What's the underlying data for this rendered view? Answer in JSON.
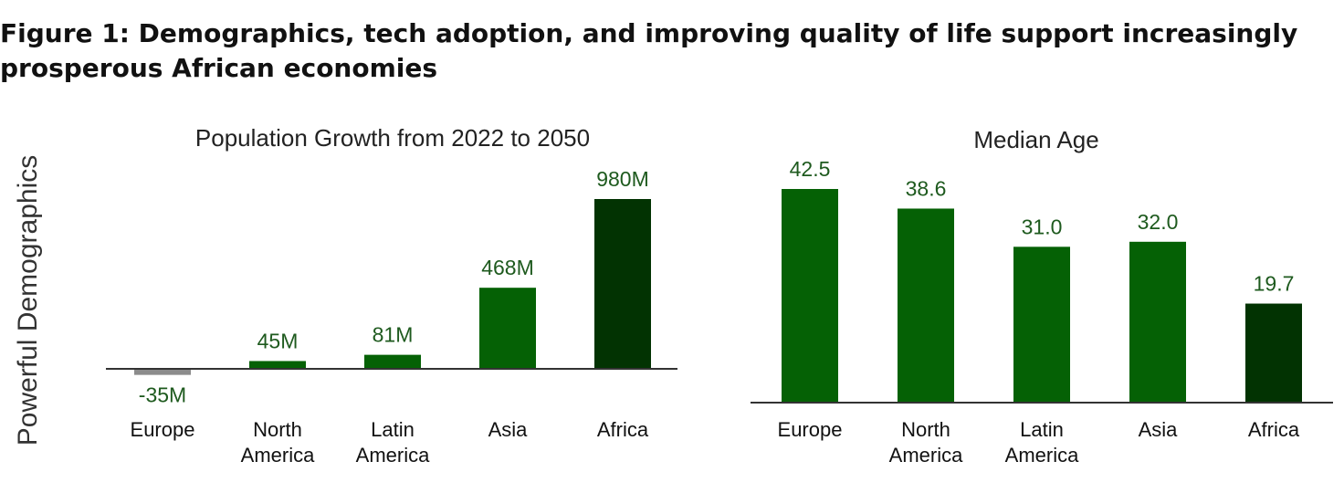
{
  "figure": {
    "title_line1": "Figure 1: Demographics, tech adoption, and improving quality of life support increasingly",
    "title_line2": "prosperous African economies",
    "side_label": "Powerful Demographics"
  },
  "colors": {
    "green": "#056105",
    "dark_green": "#023302",
    "gray": "#8c8c8c",
    "axis": "#333333"
  },
  "chart_data": [
    {
      "type": "bar",
      "title": "Population Growth from 2022 to 2050",
      "categories": [
        [
          "Europe"
        ],
        [
          "North",
          "America"
        ],
        [
          "Latin",
          "America"
        ],
        [
          "Asia"
        ],
        [
          "Africa"
        ]
      ],
      "values": [
        -35,
        45,
        81,
        468,
        980
      ],
      "data_labels": [
        "-35M",
        "45M",
        "81M",
        "468M",
        "980M"
      ],
      "bar_colors": [
        "#8c8c8c",
        "#056105",
        "#056105",
        "#056105",
        "#023302"
      ],
      "unit": "M",
      "ylim": [
        -35,
        980
      ],
      "grid": false,
      "legend": "none"
    },
    {
      "type": "bar",
      "title": "Median Age",
      "categories": [
        [
          "Europe"
        ],
        [
          "North",
          "America"
        ],
        [
          "Latin",
          "America"
        ],
        [
          "Asia"
        ],
        [
          "Africa"
        ]
      ],
      "values": [
        42.5,
        38.6,
        31.0,
        32.0,
        19.7
      ],
      "data_labels": [
        "42.5",
        "38.6",
        "31.0",
        "32.0",
        "19.7"
      ],
      "bar_colors": [
        "#056105",
        "#056105",
        "#056105",
        "#056105",
        "#023302"
      ],
      "ylim": [
        0,
        42.5
      ],
      "grid": false,
      "legend": "none"
    }
  ]
}
